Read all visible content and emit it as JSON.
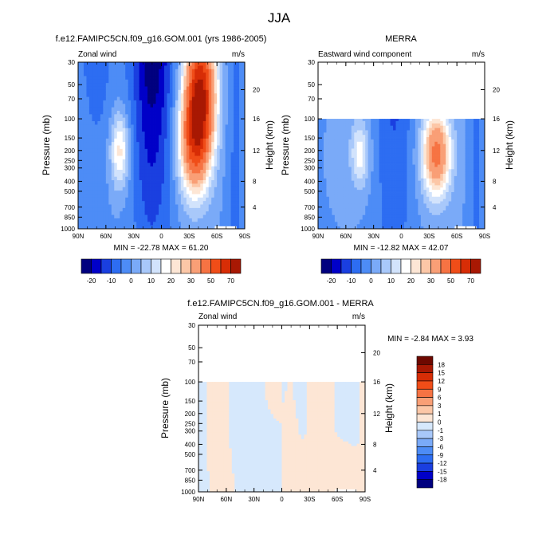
{
  "page_title": "JJA",
  "palette": [
    "#00007f",
    "#0000c8",
    "#1a3fe0",
    "#2d6df2",
    "#4d8cf6",
    "#7aaaf8",
    "#a8c8fa",
    "#d2e3fc",
    "#ffffff",
    "#fde6d5",
    "#fcc7a7",
    "#f99f76",
    "#f67343",
    "#f04d18",
    "#d72d06",
    "#a81803",
    "#6e0800"
  ],
  "chart_data": [
    {
      "type": "heatmap",
      "title_left": "f.e12.FAMIPC5CN.f09_g16.GOM.001 (yrs 1986-2005)",
      "title_center": "",
      "subtitle_left": "Zonal wind",
      "subtitle_right": "m/s",
      "ylabel": "Pressure (mb)",
      "y2label": "Height (km)",
      "x_ticks": [
        "90N",
        "60N",
        "30N",
        "0",
        "30S",
        "60S",
        "90S"
      ],
      "y_ticks": [
        "30",
        "50",
        "70",
        "100",
        "150",
        "200",
        "250",
        "300",
        "400",
        "500",
        "700",
        "850",
        "1000"
      ],
      "height_ticks": [
        "20",
        "16",
        "12",
        "8",
        "4"
      ],
      "min_max": "MIN = -22.78   MAX =  61.20",
      "levels": [
        "-20",
        "-15",
        "-10",
        "-5",
        "0",
        "5",
        "10",
        "15",
        "20",
        "25",
        "30",
        "40",
        "50",
        "60",
        "70"
      ],
      "level_labels": [
        "-20",
        "-10",
        "0",
        "10",
        "20",
        "30",
        "50",
        "70"
      ],
      "ylim": [
        1000,
        30
      ],
      "data_top_mb": 30,
      "fields": [
        {
          "lat": -40,
          "p": 150,
          "v": 58
        },
        {
          "lat": -20,
          "p": 150,
          "v": -20
        },
        {
          "lat": 45,
          "p": 250,
          "v": 20
        },
        {
          "lat": 0,
          "p": 70,
          "v": -18
        }
      ]
    },
    {
      "type": "heatmap",
      "title_left": "",
      "title_center": "MERRA",
      "subtitle_left": "Eastward wind component",
      "subtitle_right": "m/s",
      "ylabel": "Pressure (mb)",
      "y2label": "Height (km)",
      "x_ticks": [
        "90N",
        "60N",
        "30N",
        "0",
        "30S",
        "60S",
        "90S"
      ],
      "y_ticks": [
        "30",
        "50",
        "70",
        "100",
        "150",
        "200",
        "250",
        "300",
        "400",
        "500",
        "700",
        "850",
        "1000"
      ],
      "height_ticks": [
        "20",
        "16",
        "12",
        "8",
        "4"
      ],
      "min_max": "MIN = -12.82   MAX =  42.07",
      "levels": [
        "-20",
        "-15",
        "-10",
        "-5",
        "0",
        "5",
        "10",
        "15",
        "20",
        "25",
        "30",
        "40",
        "50",
        "60",
        "70"
      ],
      "level_labels": [
        "-20",
        "-10",
        "0",
        "10",
        "20",
        "30",
        "50",
        "70"
      ],
      "ylim": [
        1000,
        30
      ],
      "data_top_mb": 100,
      "fields": [
        {
          "lat": -40,
          "p": 200,
          "v": 42
        },
        {
          "lat": 45,
          "p": 200,
          "v": 18
        },
        {
          "lat": 0,
          "p": 100,
          "v": -12
        }
      ]
    },
    {
      "type": "heatmap",
      "title_center": "f.e12.FAMIPC5CN.f09_g16.GOM.001 - MERRA",
      "subtitle_left": "Zonal wind",
      "subtitle_right": "m/s",
      "ylabel": "Pressure (mb)",
      "y2label": "Height (km)",
      "x_ticks": [
        "90N",
        "60N",
        "30N",
        "0",
        "30S",
        "60S",
        "90S"
      ],
      "y_ticks": [
        "30",
        "50",
        "70",
        "100",
        "150",
        "200",
        "250",
        "300",
        "400",
        "500",
        "700",
        "850",
        "1000"
      ],
      "height_ticks": [
        "20",
        "16",
        "12",
        "8",
        "4"
      ],
      "min_max": "MIN =  -2.84   MAX =   3.93",
      "levels": [
        "18",
        "15",
        "12",
        "9",
        "6",
        "3",
        "1",
        "0",
        "-1",
        "-3",
        "-6",
        "-9",
        "-12",
        "-15",
        "-18"
      ],
      "ylim": [
        1000,
        30
      ],
      "data_top_mb": 100
    }
  ]
}
